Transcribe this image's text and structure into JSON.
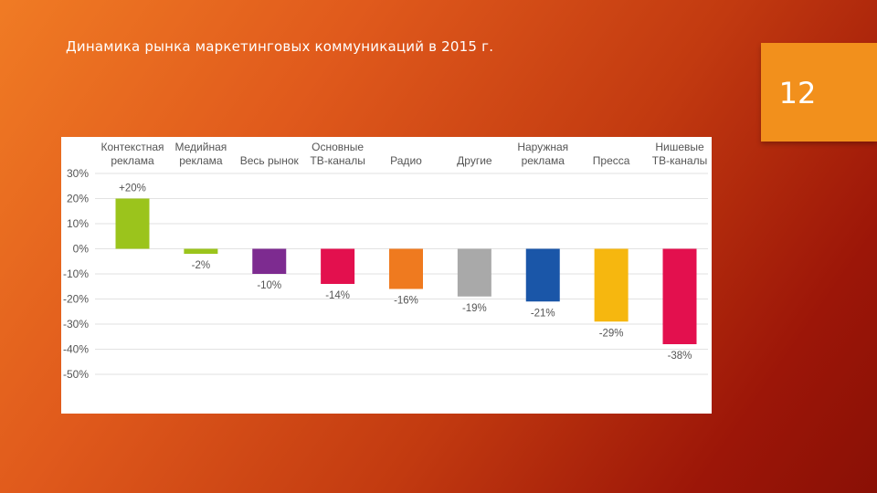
{
  "slide": {
    "title": "Динамика рынка маркетинговых коммуникаций в 2015 г.",
    "page_number": "12"
  },
  "colors": {
    "background_start": "#f07b24",
    "background_end": "#8a1005",
    "page_box": "#f2901c"
  },
  "chart_data": {
    "type": "bar",
    "title": "",
    "xlabel": "",
    "ylabel": "",
    "ylim": [
      -50,
      30
    ],
    "y_ticks": [
      30,
      20,
      10,
      0,
      -10,
      -20,
      -30,
      -40,
      -50
    ],
    "y_tick_labels": [
      "30%",
      "20%",
      "10%",
      "0%",
      "-10%",
      "-20%",
      "-30%",
      "-40%",
      "-50%"
    ],
    "grid": true,
    "categories": [
      [
        "Контекстная",
        "реклама"
      ],
      [
        "Медийная",
        "реклама"
      ],
      [
        "Весь рынок"
      ],
      [
        "Основные",
        "ТВ-каналы"
      ],
      [
        "Радио"
      ],
      [
        "Другие"
      ],
      [
        "Наружная",
        "реклама"
      ],
      [
        "Пресса"
      ],
      [
        "Нишевые",
        "ТВ-каналы"
      ]
    ],
    "values": [
      20,
      -2,
      -10,
      -14,
      -16,
      -19,
      -21,
      -29,
      -38
    ],
    "value_labels": [
      "+20%",
      "-2%",
      "-10%",
      "-14%",
      "-16%",
      "-19%",
      "-21%",
      "-29%",
      "-38%"
    ],
    "bar_colors": [
      "#9bc41c",
      "#9bc41c",
      "#7d2b90",
      "#e3104e",
      "#ef7a1f",
      "#a9a9a9",
      "#1a56a8",
      "#f6b70f",
      "#e3104e"
    ]
  }
}
